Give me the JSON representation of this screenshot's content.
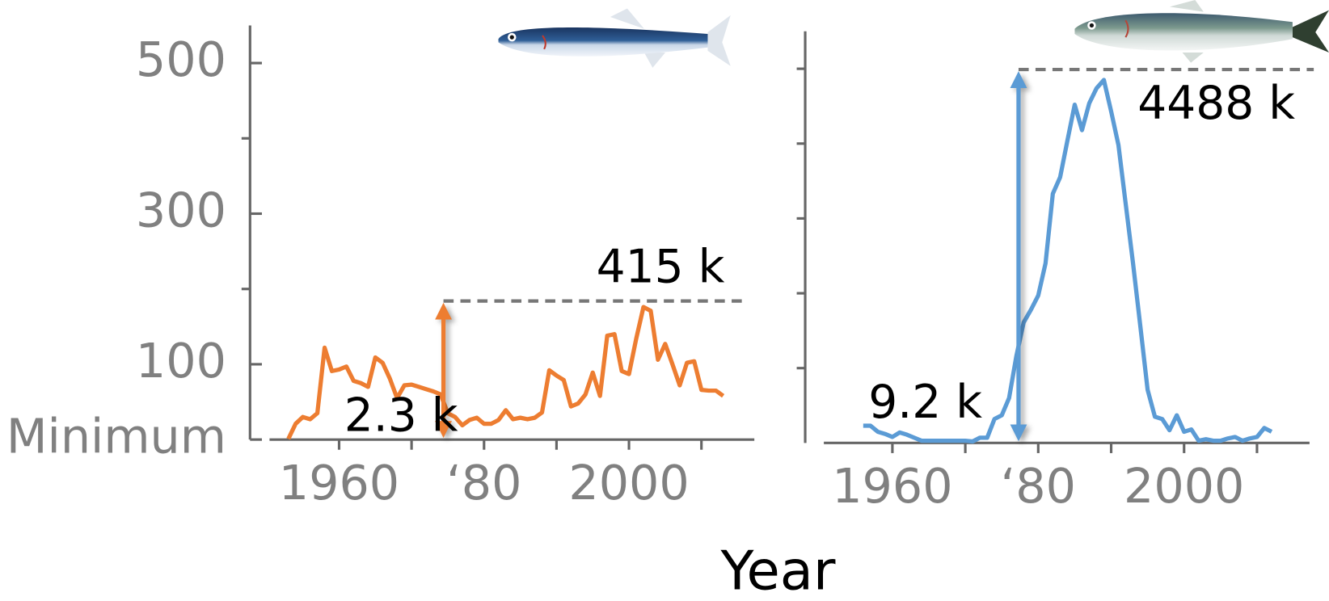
{
  "xlabel": "Year",
  "chart_data": [
    {
      "type": "line",
      "color": "#ed7d31",
      "x": [
        1953,
        1954,
        1955,
        1956,
        1957,
        1958,
        1959,
        1960,
        1961,
        1962,
        1963,
        1964,
        1965,
        1966,
        1967,
        1968,
        1969,
        1970,
        1971,
        1972,
        1973,
        1974,
        1975,
        1976,
        1977,
        1978,
        1979,
        1980,
        1981,
        1982,
        1983,
        1984,
        1985,
        1986,
        1987,
        1988,
        1989,
        1990,
        1991,
        1992,
        1993,
        1994,
        1995,
        1996,
        1997,
        1998,
        1999,
        2000,
        2001,
        2002,
        2003,
        2004,
        2005,
        2006,
        2007,
        2008,
        2009,
        2010,
        2011,
        2012,
        2013
      ],
      "values": [
        1,
        21,
        30,
        27,
        35,
        122,
        91,
        93,
        97,
        78,
        75,
        70,
        109,
        102,
        81,
        55,
        72,
        73,
        70,
        67,
        64,
        60,
        35,
        30,
        19,
        26,
        29,
        21,
        21,
        26,
        39,
        27,
        29,
        27,
        29,
        36,
        92,
        85,
        79,
        44,
        48,
        60,
        89,
        58,
        138,
        140,
        91,
        87,
        134,
        176,
        171,
        106,
        127,
        100,
        72,
        102,
        104,
        66,
        65,
        65,
        58
      ],
      "xlim": [
        1950.4,
        2017.3
      ],
      "ylim": [
        0,
        550
      ],
      "xticks": [
        1960,
        {
          "value": 1980,
          "label": "‘80"
        },
        2000
      ],
      "xminorticks": [
        1970,
        1990,
        2010
      ],
      "yticks": [
        {
          "value": 0,
          "label": "Minimum"
        },
        100,
        300,
        500
      ],
      "yminorticks": [
        200,
        400
      ],
      "range_arrow": {
        "x": 1974.4,
        "from": 0,
        "to": 184,
        "max_label": "415 k",
        "min_label": "2.3 k"
      }
    },
    {
      "type": "line",
      "color": "#5b9bd5",
      "x": [
        1956,
        1957,
        1958,
        1959,
        1960,
        1961,
        1962,
        1963,
        1964,
        1965,
        1966,
        1967,
        1968,
        1969,
        1970,
        1971,
        1972,
        1973,
        1974,
        1975,
        1976,
        1977,
        1978,
        1979,
        1980,
        1981,
        1982,
        1983,
        1984,
        1985,
        1986,
        1987,
        1988,
        1989,
        1990,
        1991,
        1992,
        1993,
        1994,
        1995,
        1996,
        1997,
        1998,
        1999,
        2000,
        2001,
        2002,
        2003,
        2004,
        2005,
        2006,
        2007,
        2008,
        2009,
        2010,
        2011,
        2012
      ],
      "values": [
        23,
        23,
        15,
        12,
        8,
        14,
        11,
        7,
        3,
        3,
        3,
        3,
        3,
        3,
        3,
        2,
        7,
        7,
        32,
        37,
        60,
        116,
        161,
        178,
        197,
        240,
        333,
        355,
        404,
        452,
        418,
        454,
        474,
        485,
        443,
        398,
        319,
        240,
        156,
        71,
        35,
        32,
        17,
        37,
        15,
        18,
        3,
        5,
        3,
        3,
        6,
        8,
        3,
        6,
        8,
        20,
        15
      ],
      "xlim": [
        1950.6,
        2017.2
      ],
      "ylim": [
        0,
        550
      ],
      "xticks": [
        1960,
        {
          "value": 1980,
          "label": "‘80"
        },
        2000
      ],
      "xminorticks": [
        1970,
        1990,
        2010
      ],
      "yminorticks": [
        100,
        200,
        300,
        400,
        500
      ],
      "range_arrow": {
        "x": 1977.3,
        "from": 0,
        "to": 499,
        "max_label": "4488 k",
        "min_label": "9.2 k"
      }
    }
  ]
}
